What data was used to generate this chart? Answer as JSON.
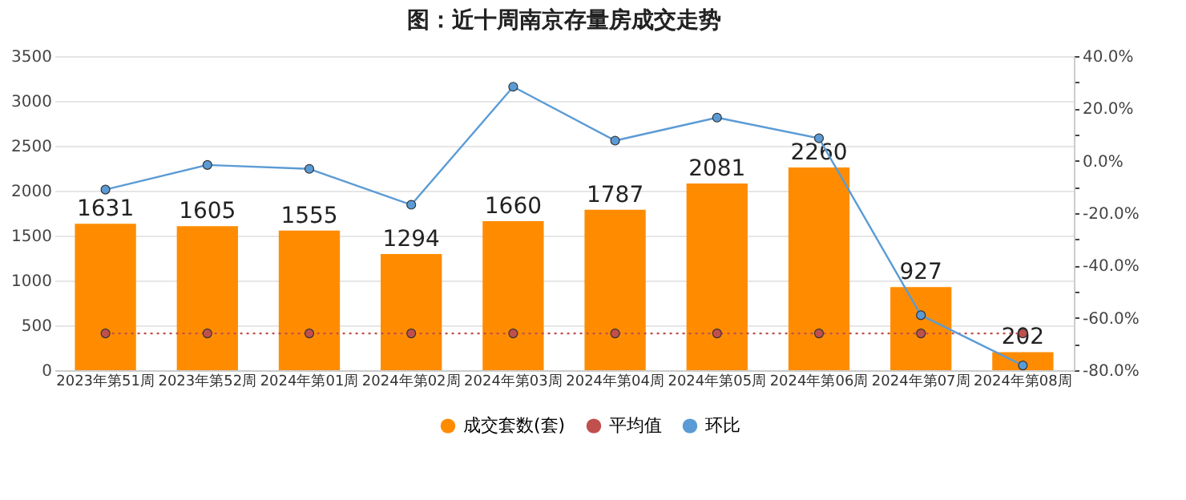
{
  "chart_data": {
    "type": "bar",
    "title": "图：近十周南京存量房成交走势",
    "categories": [
      "2023年第51周",
      "2023年第52周",
      "2024年第01周",
      "2024年第02周",
      "2024年第03周",
      "2024年第04周",
      "2024年第05周",
      "2024年第06周",
      "2024年第07周",
      "2024年第08周"
    ],
    "series": [
      {
        "name": "成交套数(套)",
        "color": "#ff8c00",
        "values": [
          1631,
          1605,
          1555,
          1294,
          1660,
          1787,
          2081,
          2260,
          927,
          202
        ],
        "value_labels": [
          "1631",
          "1605",
          "1555",
          "1294",
          "1660",
          "1787",
          "2081",
          "2260",
          "927",
          "202"
        ]
      },
      {
        "name": "平均值",
        "type": "line",
        "color": "#c0504d",
        "line_style": "dotted",
        "marker": "circle",
        "values": [
          410,
          410,
          410,
          410,
          410,
          410,
          410,
          410,
          410,
          410
        ]
      },
      {
        "name": "环比",
        "type": "line",
        "axis": "y2",
        "color": "#5b9bd5",
        "line_style": "solid",
        "marker": "circle",
        "values": [
          -11,
          -1.6,
          -3.1,
          -16.8,
          28.3,
          7.7,
          16.5,
          8.6,
          -59.0,
          -78.2
        ]
      }
    ],
    "ylim": [
      0,
      3500
    ],
    "yticks": [
      0,
      500,
      1000,
      1500,
      2000,
      2500,
      3000,
      3500
    ],
    "y2lim": [
      -80,
      40
    ],
    "y2ticks": [
      {
        "value": -80,
        "label": "-80.0%"
      },
      {
        "value": -70,
        "label": null
      },
      {
        "value": -60,
        "label": "-60.0%"
      },
      {
        "value": -50,
        "label": null
      },
      {
        "value": -40,
        "label": "-40.0%"
      },
      {
        "value": -30,
        "label": null
      },
      {
        "value": -20,
        "label": "-20.0%"
      },
      {
        "value": -10,
        "label": null
      },
      {
        "value": 0,
        "label": "0.0%"
      },
      {
        "value": 10,
        "label": null
      },
      {
        "value": 20,
        "label": "20.0%"
      },
      {
        "value": 30,
        "label": null
      },
      {
        "value": 40,
        "label": "40.0%"
      }
    ],
    "grid": "y",
    "legend": "bottom"
  }
}
